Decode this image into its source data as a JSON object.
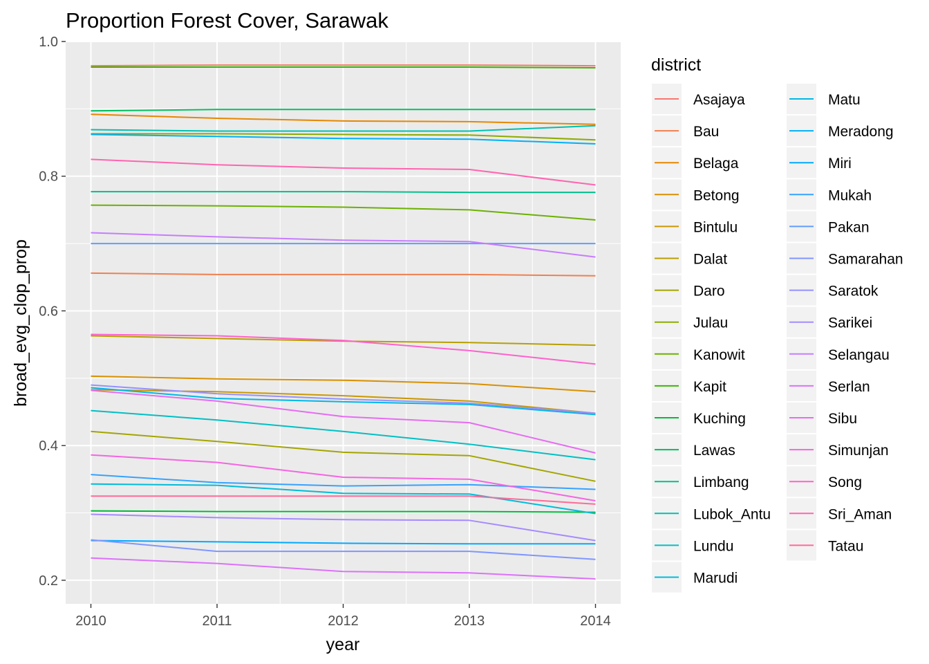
{
  "chart_data": {
    "type": "line",
    "title": "Proportion Forest Cover, Sarawak",
    "xlabel": "year",
    "ylabel": "broad_evg_clop_prop",
    "x": [
      2010,
      2011,
      2012,
      2013,
      2014
    ],
    "x_ticks": [
      "2010",
      "2011",
      "2012",
      "2013",
      "2014"
    ],
    "xlim": [
      2009.8,
      2014.2
    ],
    "y_ticks": [
      "0.2",
      "0.4",
      "0.6",
      "0.8",
      "1.0"
    ],
    "ylim": [
      0.165,
      1.0
    ],
    "grid": true,
    "panel_background": "#ebebeb",
    "legend": {
      "title": "district",
      "position": "right",
      "columns": 2
    },
    "series": [
      {
        "name": "Asajaya",
        "color": "#F8766D",
        "values": [
          0.964,
          0.965,
          0.965,
          0.965,
          0.964
        ]
      },
      {
        "name": "Bau",
        "color": "#F07F4F",
        "values": [
          0.656,
          0.654,
          0.654,
          0.654,
          0.652
        ]
      },
      {
        "name": "Belaga",
        "color": "#E58700",
        "values": [
          0.892,
          0.886,
          0.882,
          0.881,
          0.877
        ]
      },
      {
        "name": "Betong",
        "color": "#D89000",
        "values": [
          0.503,
          0.499,
          0.497,
          0.492,
          0.48
        ]
      },
      {
        "name": "Bintulu",
        "color": "#C99800",
        "values": [
          0.483,
          0.48,
          0.474,
          0.466,
          0.448
        ]
      },
      {
        "name": "Dalat",
        "color": "#B79F00",
        "values": [
          0.563,
          0.559,
          0.555,
          0.553,
          0.549
        ]
      },
      {
        "name": "Daro",
        "color": "#A3A500",
        "values": [
          0.421,
          0.406,
          0.39,
          0.385,
          0.347
        ]
      },
      {
        "name": "Julau",
        "color": "#8BAB00",
        "values": [
          0.863,
          0.863,
          0.862,
          0.861,
          0.854
        ]
      },
      {
        "name": "Kanowit",
        "color": "#6BB100",
        "values": [
          0.757,
          0.756,
          0.754,
          0.75,
          0.735
        ]
      },
      {
        "name": "Kapit",
        "color": "#39B600",
        "values": [
          0.962,
          0.962,
          0.962,
          0.962,
          0.961
        ]
      },
      {
        "name": "Kuching",
        "color": "#00BA38",
        "values": [
          0.303,
          0.302,
          0.302,
          0.302,
          0.301
        ]
      },
      {
        "name": "Lawas",
        "color": "#00BD5F",
        "values": [
          0.897,
          0.899,
          0.899,
          0.899,
          0.899
        ]
      },
      {
        "name": "Limbang",
        "color": "#00C08B",
        "values": [
          0.777,
          0.777,
          0.777,
          0.776,
          0.776
        ]
      },
      {
        "name": "Lubok_Antu",
        "color": "#00C0AF",
        "values": [
          0.869,
          0.867,
          0.867,
          0.867,
          0.875
        ]
      },
      {
        "name": "Lundu",
        "color": "#00BFC4",
        "values": [
          0.452,
          0.438,
          0.421,
          0.402,
          0.379
        ]
      },
      {
        "name": "Marudi",
        "color": "#00BCD8",
        "values": [
          0.343,
          0.341,
          0.329,
          0.328,
          0.299
        ]
      },
      {
        "name": "Matu",
        "color": "#00B8E7",
        "values": [
          0.486,
          0.47,
          0.465,
          0.461,
          0.446
        ]
      },
      {
        "name": "Meradong",
        "color": "#00B0F6",
        "values": [
          0.862,
          0.859,
          0.856,
          0.855,
          0.848
        ]
      },
      {
        "name": "Miri",
        "color": "#00A9FF",
        "values": [
          0.259,
          0.257,
          0.255,
          0.254,
          0.254
        ]
      },
      {
        "name": "Mukah",
        "color": "#35A2FF",
        "values": [
          0.357,
          0.345,
          0.34,
          0.342,
          0.335
        ]
      },
      {
        "name": "Pakan",
        "color": "#619CFF",
        "values": [
          0.7,
          0.7,
          0.7,
          0.7,
          0.7
        ]
      },
      {
        "name": "Samarahan",
        "color": "#7F96FF",
        "values": [
          0.26,
          0.243,
          0.243,
          0.243,
          0.231
        ]
      },
      {
        "name": "Saratok",
        "color": "#9590FF",
        "values": [
          0.49,
          0.477,
          0.469,
          0.463,
          0.448
        ]
      },
      {
        "name": "Sarikei",
        "color": "#A58AFF",
        "values": [
          0.298,
          0.293,
          0.29,
          0.289,
          0.259
        ]
      },
      {
        "name": "Selangau",
        "color": "#C77CFF",
        "values": [
          0.716,
          0.71,
          0.705,
          0.703,
          0.68
        ]
      },
      {
        "name": "Serlan",
        "color": "#DC71FA",
        "values": [
          0.233,
          0.225,
          0.213,
          0.211,
          0.202
        ]
      },
      {
        "name": "Sibu",
        "color": "#E76BF3",
        "values": [
          0.482,
          0.466,
          0.443,
          0.434,
          0.389
        ]
      },
      {
        "name": "Simunjan",
        "color": "#F564E3",
        "values": [
          0.386,
          0.375,
          0.353,
          0.35,
          0.318
        ]
      },
      {
        "name": "Song",
        "color": "#FF61CC",
        "values": [
          0.565,
          0.563,
          0.556,
          0.541,
          0.521
        ]
      },
      {
        "name": "Sri_Aman",
        "color": "#FF64B0",
        "values": [
          0.825,
          0.817,
          0.812,
          0.81,
          0.787
        ]
      },
      {
        "name": "Tatau",
        "color": "#FF6A98",
        "values": [
          0.325,
          0.325,
          0.325,
          0.325,
          0.313
        ]
      }
    ]
  }
}
